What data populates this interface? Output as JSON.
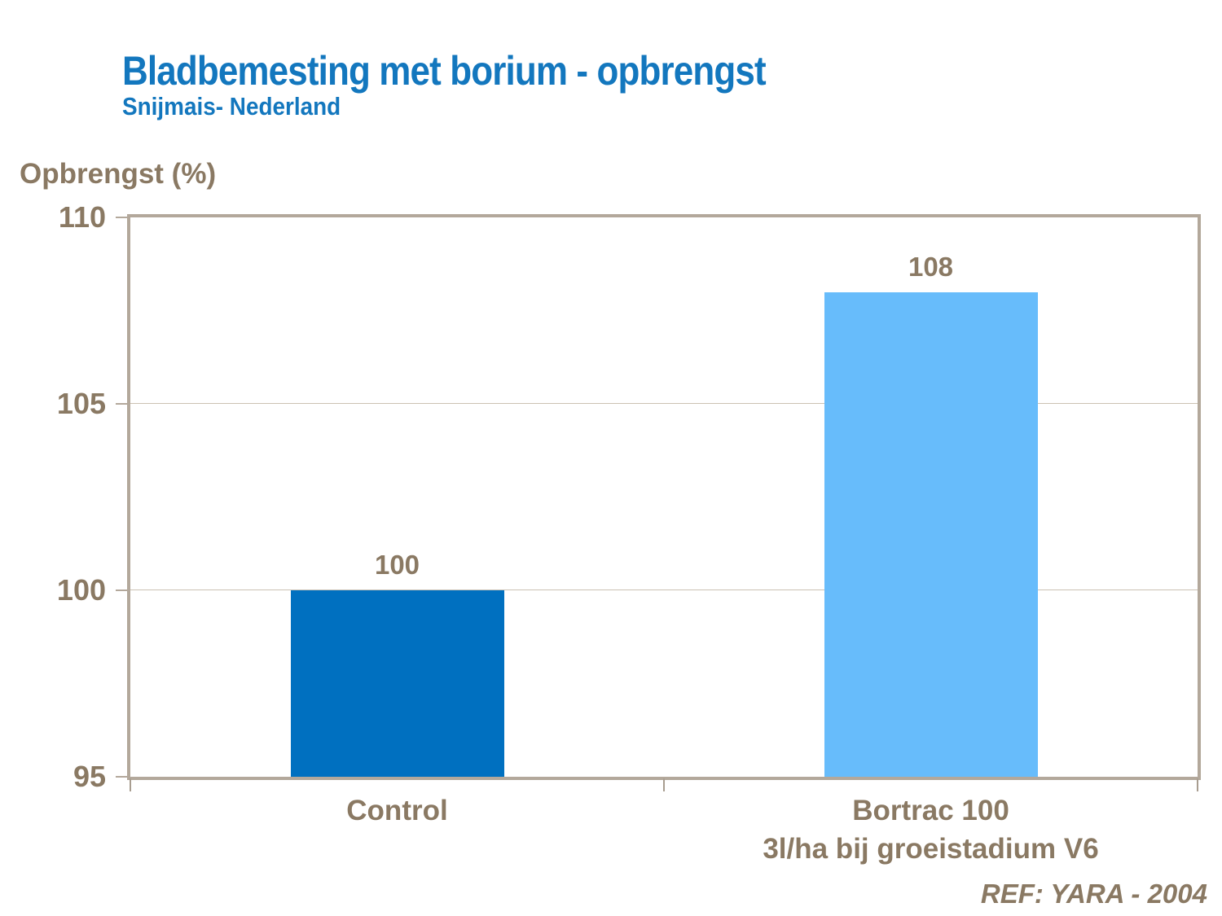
{
  "header": {
    "title": "Bladbemesting met borium - opbrengst",
    "subtitle": "Snijmais- Nederland"
  },
  "footer": {
    "ref": "REF: YARA - 2004"
  },
  "colors": {
    "title_blue": "#1377BE",
    "label_brown": "#8A7963",
    "axis_line": "#B3A89B",
    "gridline": "#CBC2B3",
    "bar_control": "#0070C0",
    "bar_bortrac": "#67BCFB"
  },
  "chart_data": {
    "type": "bar",
    "title": "Bladbemesting met borium - opbrengst",
    "subtitle": "Snijmais- Nederland",
    "ylabel": "Opbrengst (%)",
    "xlabel": "",
    "categories": [
      "Control",
      "Bortrac 100\n3l/ha bij groeistadium V6"
    ],
    "values": [
      100,
      108
    ],
    "data_labels": [
      "100",
      "108"
    ],
    "bar_colors": [
      "#0070C0",
      "#67BCFB"
    ],
    "ylim": [
      95,
      110
    ],
    "yticks": [
      95,
      100,
      105,
      110
    ],
    "grid": "horizontal",
    "legend": "none",
    "annotation": "REF: YARA - 2004"
  }
}
